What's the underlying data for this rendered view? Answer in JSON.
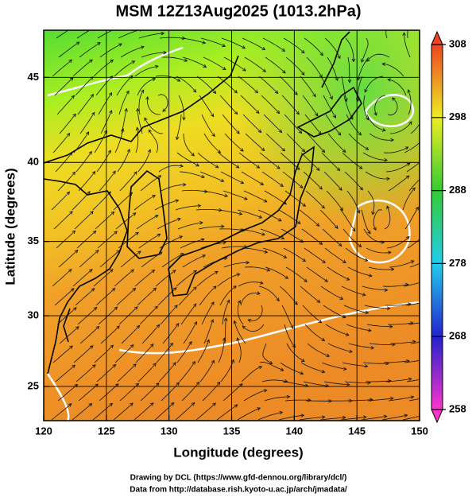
{
  "chart_data": {
    "type": "map",
    "title": "MSM 12Z13Aug2025 (1013.2hPa)",
    "x_label": "Longitude (degrees)",
    "y_label": "Latitude  (degrees)",
    "projection": "mercator",
    "xlim": [
      120,
      150
    ],
    "xticks": [
      120,
      125,
      130,
      135,
      140,
      145,
      150
    ],
    "ylim": [
      22.5,
      47.6
    ],
    "yticks": [
      25,
      30,
      35,
      40,
      45
    ],
    "grid": true,
    "colorbar": {
      "lim": [
        258,
        308
      ],
      "ticks": [
        258,
        268,
        278,
        288,
        298,
        308
      ],
      "colors": [
        "#ff33cc",
        "#2222cc",
        "#22ccee",
        "#33cc33",
        "#eeee22",
        "#ee4422"
      ]
    },
    "credits": [
      "Drawing by DCL (https://www.gfd-dennou.org/library/dcl/)",
      "Data from http://database.rish.kyoto-u.ac.jp/arch/jmadata/"
    ]
  }
}
